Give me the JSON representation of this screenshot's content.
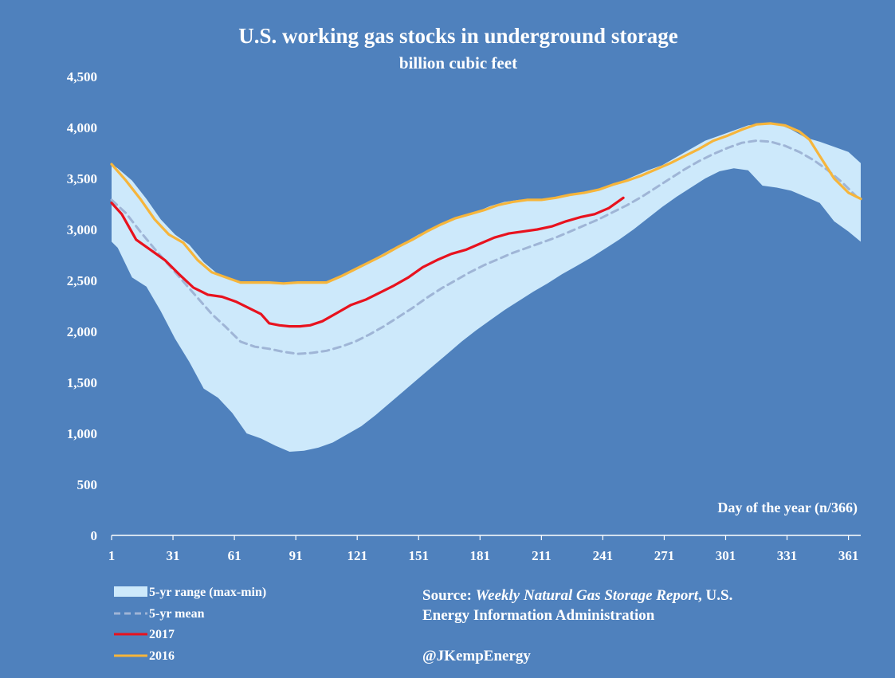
{
  "chart_data": {
    "type": "area",
    "title": "U.S. working gas stocks in underground storage",
    "subtitle": "billion cubic feet",
    "xlabel": "Day of the year (n/366)",
    "ylabel": "",
    "xlim": [
      1,
      367
    ],
    "ylim": [
      0,
      4500
    ],
    "x_ticks": [
      1,
      31,
      61,
      91,
      121,
      151,
      181,
      211,
      241,
      271,
      301,
      331,
      361
    ],
    "y_ticks": [
      0,
      500,
      1000,
      1500,
      2000,
      2500,
      3000,
      3500,
      4000,
      4500
    ],
    "y_tick_labels": [
      "0",
      "500",
      "1,000",
      "1,500",
      "2,000",
      "2,500",
      "3,000",
      "3,500",
      "4,000",
      "4,500"
    ],
    "grid": false,
    "legend_position": "bottom-left",
    "colors": {
      "background": "#4f81bd",
      "range_fill": "#cde9fb",
      "mean": "#9fb5d6",
      "y2017": "#e8121e",
      "y2016": "#f6b53b",
      "axis": "#ffffff"
    },
    "series": [
      {
        "name": "5-yr range (max-min)",
        "style": "band",
        "x": [
          1,
          4,
          11,
          18,
          25,
          32,
          39,
          46,
          53,
          60,
          67,
          74,
          81,
          88,
          95,
          102,
          109,
          116,
          123,
          130,
          137,
          144,
          151,
          158,
          165,
          172,
          179,
          186,
          193,
          200,
          207,
          214,
          221,
          228,
          235,
          242,
          249,
          256,
          263,
          270,
          277,
          284,
          291,
          298,
          305,
          312,
          319,
          326,
          333,
          340,
          347,
          354,
          361,
          367
        ],
        "upper": [
          3640,
          3600,
          3480,
          3300,
          3100,
          2950,
          2850,
          2680,
          2560,
          2510,
          2470,
          2480,
          2470,
          2470,
          2470,
          2470,
          2500,
          2580,
          2650,
          2720,
          2800,
          2870,
          2950,
          3010,
          3080,
          3130,
          3170,
          3230,
          3270,
          3290,
          3290,
          3300,
          3320,
          3340,
          3370,
          3420,
          3460,
          3520,
          3580,
          3630,
          3710,
          3790,
          3870,
          3920,
          3970,
          4020,
          4040,
          4040,
          3980,
          3900,
          3860,
          3810,
          3760,
          3650
        ],
        "lower": [
          2880,
          2820,
          2530,
          2440,
          2200,
          1930,
          1700,
          1440,
          1350,
          1200,
          1000,
          950,
          880,
          820,
          830,
          860,
          910,
          990,
          1070,
          1180,
          1300,
          1420,
          1540,
          1660,
          1780,
          1900,
          2010,
          2110,
          2210,
          2300,
          2390,
          2470,
          2560,
          2640,
          2720,
          2810,
          2900,
          3000,
          3110,
          3220,
          3320,
          3410,
          3500,
          3570,
          3600,
          3580,
          3430,
          3410,
          3380,
          3320,
          3260,
          3080,
          2980,
          2880
        ]
      },
      {
        "name": "5-yr mean",
        "style": "dashed",
        "x": [
          1,
          8,
          15,
          22,
          29,
          36,
          43,
          50,
          57,
          64,
          71,
          78,
          85,
          92,
          99,
          106,
          113,
          120,
          127,
          134,
          141,
          148,
          155,
          162,
          169,
          176,
          183,
          190,
          197,
          204,
          211,
          218,
          225,
          232,
          239,
          246,
          253,
          260,
          267,
          274,
          281,
          288,
          295,
          302,
          309,
          316,
          323,
          330,
          337,
          344,
          351,
          358,
          365
        ],
        "values": [
          3290,
          3160,
          2980,
          2810,
          2650,
          2490,
          2330,
          2170,
          2040,
          1900,
          1850,
          1830,
          1800,
          1780,
          1790,
          1810,
          1850,
          1900,
          1970,
          2050,
          2140,
          2230,
          2330,
          2420,
          2500,
          2580,
          2650,
          2710,
          2770,
          2820,
          2870,
          2920,
          2980,
          3040,
          3100,
          3170,
          3240,
          3320,
          3410,
          3500,
          3590,
          3670,
          3740,
          3800,
          3850,
          3870,
          3860,
          3820,
          3760,
          3680,
          3580,
          3460,
          3320
        ]
      },
      {
        "name": "2017",
        "style": "line",
        "x": [
          1,
          6,
          13,
          20,
          27,
          34,
          41,
          48,
          55,
          62,
          69,
          74,
          78,
          83,
          88,
          93,
          98,
          104,
          111,
          118,
          125,
          132,
          139,
          146,
          153,
          160,
          167,
          174,
          181,
          188,
          195,
          202,
          209,
          216,
          223,
          230,
          237,
          244,
          251
        ],
        "values": [
          3260,
          3150,
          2900,
          2800,
          2700,
          2560,
          2430,
          2360,
          2340,
          2290,
          2220,
          2170,
          2080,
          2060,
          2050,
          2050,
          2060,
          2100,
          2180,
          2260,
          2310,
          2380,
          2450,
          2530,
          2630,
          2700,
          2760,
          2800,
          2860,
          2920,
          2960,
          2980,
          3000,
          3030,
          3080,
          3120,
          3150,
          3210,
          3310
        ]
      },
      {
        "name": "2016",
        "style": "line",
        "x": [
          1,
          8,
          15,
          22,
          29,
          36,
          43,
          50,
          57,
          64,
          71,
          78,
          85,
          92,
          99,
          106,
          113,
          120,
          127,
          134,
          141,
          148,
          155,
          162,
          169,
          176,
          183,
          190,
          197,
          204,
          211,
          218,
          225,
          232,
          239,
          246,
          253,
          260,
          267,
          274,
          281,
          288,
          295,
          302,
          309,
          316,
          323,
          330,
          337,
          342,
          347,
          354,
          361,
          367
        ],
        "values": [
          3640,
          3480,
          3300,
          3100,
          2950,
          2870,
          2700,
          2580,
          2530,
          2480,
          2480,
          2480,
          2470,
          2480,
          2480,
          2480,
          2540,
          2610,
          2680,
          2750,
          2830,
          2900,
          2980,
          3050,
          3110,
          3150,
          3190,
          3240,
          3270,
          3290,
          3290,
          3310,
          3340,
          3360,
          3390,
          3440,
          3480,
          3530,
          3590,
          3650,
          3720,
          3790,
          3870,
          3920,
          3980,
          4030,
          4040,
          4020,
          3960,
          3880,
          3720,
          3500,
          3360,
          3300
        ]
      }
    ]
  },
  "source": {
    "prefix": "Source: ",
    "report": "Weekly Natural Gas Storage Report",
    "suffix": ", U.S.",
    "line2": "Energy Information Administration",
    "handle": "@JKempEnergy"
  }
}
